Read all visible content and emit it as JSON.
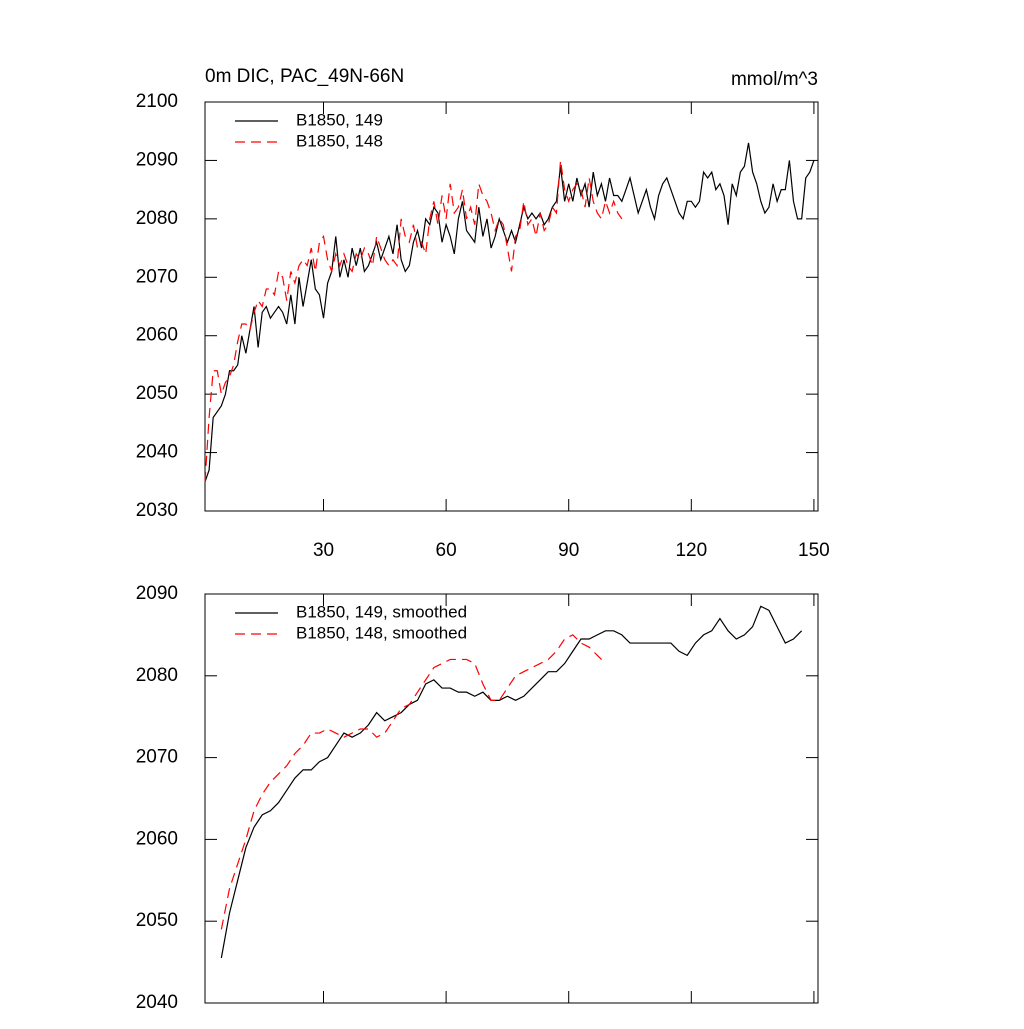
{
  "chart_data": [
    {
      "type": "line",
      "title": "0m DIC, PAC_49N-66N",
      "units": "mmol/m^3",
      "xlim": [
        1,
        151
      ],
      "xticks": [
        30,
        60,
        90,
        120,
        150
      ],
      "ylim": [
        2030,
        2100
      ],
      "yticks": [
        2030,
        2040,
        2050,
        2060,
        2070,
        2080,
        2090,
        2100
      ],
      "legend": "upper left",
      "series": [
        {
          "name": "B1850, 149",
          "color": "#000000",
          "style": "solid",
          "x": [
            1,
            2,
            3,
            4,
            5,
            6,
            7,
            8,
            9,
            10,
            11,
            12,
            13,
            14,
            15,
            16,
            17,
            18,
            19,
            20,
            21,
            22,
            23,
            24,
            25,
            26,
            27,
            28,
            29,
            30,
            31,
            32,
            33,
            34,
            35,
            36,
            37,
            38,
            39,
            40,
            41,
            42,
            43,
            44,
            45,
            46,
            47,
            48,
            49,
            50,
            51,
            52,
            53,
            54,
            55,
            56,
            57,
            58,
            59,
            60,
            61,
            62,
            63,
            64,
            65,
            66,
            67,
            68,
            69,
            70,
            71,
            72,
            73,
            74,
            75,
            76,
            77,
            78,
            79,
            80,
            81,
            82,
            83,
            84,
            85,
            86,
            87,
            88,
            89,
            90,
            91,
            92,
            93,
            94,
            95,
            96,
            97,
            98,
            99,
            100,
            101,
            102,
            103,
            104,
            105,
            106,
            107,
            108,
            109,
            110,
            111,
            112,
            113,
            114,
            115,
            116,
            117,
            118,
            119,
            120,
            121,
            122,
            123,
            124,
            125,
            126,
            127,
            128,
            129,
            130,
            131,
            132,
            133,
            134,
            135,
            136,
            137,
            138,
            139,
            140,
            141,
            142,
            143,
            144,
            145,
            146,
            147,
            148,
            149,
            150
          ],
          "values": [
            2035,
            2037,
            2046,
            2047,
            2048,
            2050,
            2054,
            2054,
            2055,
            2060,
            2057,
            2061,
            2065,
            2058,
            2064,
            2065,
            2063,
            2064,
            2065,
            2064,
            2062,
            2067,
            2062,
            2070,
            2065,
            2069,
            2073,
            2068,
            2067,
            2063,
            2069,
            2071,
            2077,
            2070,
            2073,
            2070,
            2075,
            2072,
            2075,
            2071,
            2072,
            2074,
            2076,
            2073,
            2075,
            2077,
            2074,
            2079,
            2073,
            2071,
            2072,
            2076,
            2078,
            2075,
            2080,
            2079,
            2082,
            2081,
            2076,
            2079,
            2077,
            2074,
            2080,
            2083,
            2078,
            2077,
            2076,
            2082,
            2077,
            2080,
            2075,
            2077,
            2080,
            2078,
            2076,
            2078,
            2076,
            2079,
            2082,
            2080,
            2081,
            2080,
            2081,
            2079,
            2080,
            2082,
            2083,
            2089,
            2083,
            2086,
            2083,
            2087,
            2084,
            2086,
            2082,
            2088,
            2084,
            2086,
            2083,
            2087,
            2084,
            2084,
            2083,
            2085,
            2087,
            2084,
            2081,
            2083,
            2085,
            2082,
            2080,
            2084,
            2086,
            2087,
            2085,
            2083,
            2081,
            2080,
            2083,
            2083,
            2082,
            2083,
            2088,
            2087,
            2088,
            2085,
            2086,
            2084,
            2079,
            2086,
            2084,
            2088,
            2089,
            2093,
            2088,
            2086,
            2083,
            2081,
            2082,
            2086,
            2083,
            2085,
            2085,
            2090,
            2083,
            2080,
            2080,
            2087,
            2088,
            2090
          ]
        },
        {
          "name": "B1850, 148",
          "color": "#ff0000",
          "style": "dashed",
          "x": [
            1,
            2,
            3,
            4,
            5,
            6,
            7,
            8,
            9,
            10,
            11,
            12,
            13,
            14,
            15,
            16,
            17,
            18,
            19,
            20,
            21,
            22,
            23,
            24,
            25,
            26,
            27,
            28,
            29,
            30,
            31,
            32,
            33,
            34,
            35,
            36,
            37,
            38,
            39,
            40,
            41,
            42,
            43,
            44,
            45,
            46,
            47,
            48,
            49,
            50,
            51,
            52,
            53,
            54,
            55,
            56,
            57,
            58,
            59,
            60,
            61,
            62,
            63,
            64,
            65,
            66,
            67,
            68,
            69,
            70,
            71,
            72,
            73,
            74,
            75,
            76,
            77,
            78,
            79,
            80,
            81,
            82,
            83,
            84,
            85,
            86,
            87,
            88,
            89,
            90,
            91,
            92,
            93,
            94,
            95,
            96,
            97,
            98,
            99,
            100,
            101,
            102,
            103
          ],
          "values": [
            2035,
            2046,
            2054,
            2054,
            2050,
            2052,
            2053,
            2055,
            2059,
            2062,
            2062,
            2061,
            2064,
            2066,
            2065,
            2068,
            2068,
            2067,
            2071,
            2070,
            2066,
            2071,
            2069,
            2072,
            2073,
            2072,
            2075,
            2071,
            2076,
            2077,
            2073,
            2071,
            2074,
            2072,
            2074,
            2072,
            2071,
            2074,
            2073,
            2075,
            2074,
            2072,
            2077,
            2075,
            2073,
            2072,
            2073,
            2072,
            2080,
            2077,
            2076,
            2079,
            2075,
            2076,
            2074,
            2080,
            2083,
            2079,
            2084,
            2080,
            2086,
            2081,
            2082,
            2085,
            2080,
            2082,
            2079,
            2086,
            2084,
            2083,
            2081,
            2078,
            2080,
            2079,
            2075,
            2071,
            2077,
            2078,
            2083,
            2079,
            2080,
            2077,
            2081,
            2078,
            2079,
            2082,
            2081,
            2090,
            2085,
            2083,
            2085,
            2086,
            2085,
            2082,
            2087,
            2083,
            2081,
            2080,
            2083,
            2081,
            2083,
            2081,
            2080
          ]
        }
      ]
    },
    {
      "type": "line",
      "xlim": [
        1,
        151
      ],
      "xticks": [
        30,
        60,
        90,
        120,
        150
      ],
      "ylim": [
        2040,
        2090
      ],
      "yticks": [
        2040,
        2050,
        2060,
        2070,
        2080,
        2090
      ],
      "legend": "upper left",
      "series": [
        {
          "name": "B1850, 149, smoothed",
          "color": "#000000",
          "style": "solid",
          "x": [
            5,
            7,
            9,
            11,
            13,
            15,
            17,
            19,
            21,
            23,
            25,
            27,
            29,
            31,
            33,
            35,
            37,
            39,
            41,
            43,
            45,
            47,
            49,
            51,
            53,
            55,
            57,
            59,
            61,
            63,
            65,
            67,
            69,
            71,
            73,
            75,
            77,
            79,
            81,
            83,
            85,
            87,
            89,
            91,
            93,
            95,
            97,
            99,
            101,
            103,
            105,
            107,
            109,
            111,
            113,
            115,
            117,
            119,
            121,
            123,
            125,
            127,
            129,
            131,
            133,
            135,
            137,
            139,
            141,
            143,
            145,
            147
          ],
          "values": [
            2045.5,
            2051,
            2055,
            2059,
            2061.5,
            2063,
            2063.5,
            2064.5,
            2066,
            2067.5,
            2068.5,
            2068.5,
            2069.5,
            2070,
            2071.5,
            2073,
            2072.5,
            2073,
            2074,
            2075.5,
            2074.5,
            2075,
            2075.5,
            2076.5,
            2077,
            2079,
            2079.5,
            2078.5,
            2078.5,
            2078,
            2078,
            2077.5,
            2078,
            2077,
            2077,
            2077.5,
            2077,
            2077.5,
            2078.5,
            2079.5,
            2080.5,
            2080.5,
            2081.5,
            2083,
            2084.5,
            2084.5,
            2085,
            2085.5,
            2085.5,
            2085,
            2084,
            2084,
            2084,
            2084,
            2084,
            2084,
            2083,
            2082.5,
            2084,
            2085,
            2085.5,
            2087,
            2085.5,
            2084.5,
            2085,
            2086,
            2088.5,
            2088,
            2086,
            2084,
            2084.5,
            2085.5
          ]
        },
        {
          "name": "B1850, 148, smoothed",
          "color": "#ff0000",
          "style": "dashed",
          "x": [
            5,
            7,
            9,
            11,
            13,
            15,
            17,
            19,
            21,
            23,
            25,
            27,
            29,
            31,
            33,
            35,
            37,
            39,
            41,
            43,
            45,
            47,
            49,
            51,
            53,
            55,
            57,
            59,
            61,
            63,
            65,
            67,
            69,
            71,
            73,
            75,
            77,
            79,
            81,
            83,
            85,
            87,
            89,
            91,
            93,
            95,
            97,
            99
          ],
          "values": [
            2049,
            2054,
            2057,
            2060,
            2063.5,
            2065.5,
            2067,
            2068,
            2069,
            2070.5,
            2071.5,
            2073,
            2073,
            2073.5,
            2073,
            2072.5,
            2073,
            2073.5,
            2073.5,
            2072.5,
            2073,
            2074.5,
            2076,
            2076.5,
            2078,
            2079.5,
            2081,
            2081.5,
            2082,
            2082,
            2082,
            2081.5,
            2079,
            2077,
            2077,
            2078.5,
            2080,
            2080.5,
            2081,
            2081.5,
            2082,
            2083,
            2084.5,
            2085,
            2084,
            2083.5,
            2082.5,
            2081.5
          ]
        }
      ]
    }
  ]
}
